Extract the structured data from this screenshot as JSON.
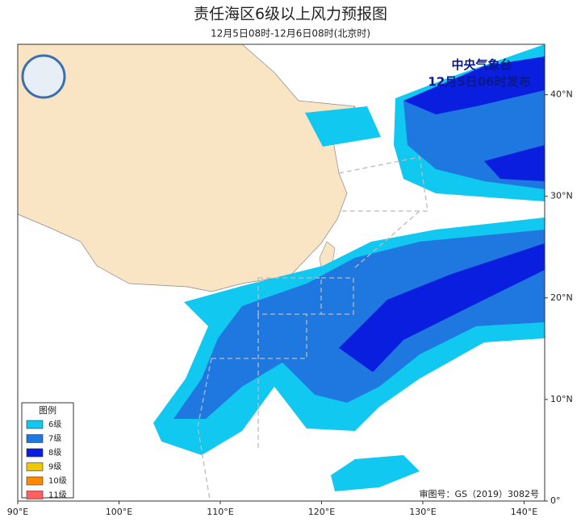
{
  "header": {
    "title": "责任海区6级以上风力预报图",
    "subtitle": "12月5日08时-12月6日08时(北京时)"
  },
  "issuer": {
    "name": "中央气象台",
    "time": "12月5日06时发布"
  },
  "legend": {
    "title": "图例",
    "items": [
      {
        "label": "6级",
        "color": "#10c8f0"
      },
      {
        "label": "7级",
        "color": "#1f78e0"
      },
      {
        "label": "8级",
        "color": "#0a1ee0"
      },
      {
        "label": "9级",
        "color": "#f0c800"
      },
      {
        "label": "10级",
        "color": "#ff8a00"
      },
      {
        "label": "11级",
        "color": "#ff6060"
      }
    ]
  },
  "axes": {
    "x_labels": [
      "90°E",
      "100°E",
      "110°E",
      "120°E",
      "130°E",
      "140°E"
    ],
    "y_labels": [
      "0°",
      "10°N",
      "20°N",
      "30°N",
      "40°N"
    ]
  },
  "footer": "审图号：GS（2019）3082号"
}
